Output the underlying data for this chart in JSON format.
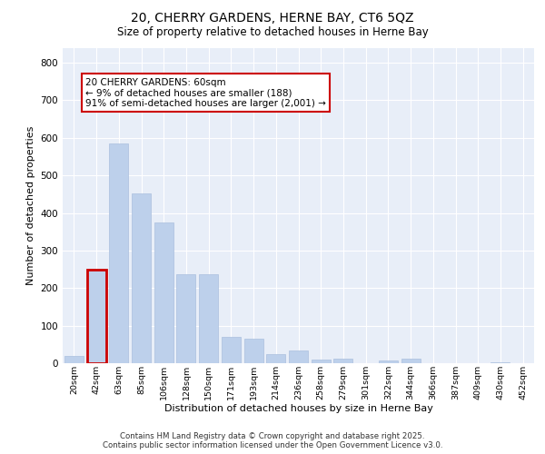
{
  "title_line1": "20, CHERRY GARDENS, HERNE BAY, CT6 5QZ",
  "title_line2": "Size of property relative to detached houses in Herne Bay",
  "xlabel": "Distribution of detached houses by size in Herne Bay",
  "ylabel": "Number of detached properties",
  "categories": [
    "20sqm",
    "42sqm",
    "63sqm",
    "85sqm",
    "106sqm",
    "128sqm",
    "150sqm",
    "171sqm",
    "193sqm",
    "214sqm",
    "236sqm",
    "258sqm",
    "279sqm",
    "301sqm",
    "322sqm",
    "344sqm",
    "366sqm",
    "387sqm",
    "409sqm",
    "430sqm",
    "452sqm"
  ],
  "values": [
    20,
    248,
    585,
    453,
    375,
    238,
    238,
    70,
    65,
    25,
    35,
    10,
    12,
    0,
    8,
    12,
    0,
    0,
    0,
    3,
    0
  ],
  "bar_color": "#bdd0eb",
  "bar_edge_color": "#aabfdd",
  "highlight_bar_index": 1,
  "highlight_edge_color": "#cc0000",
  "annotation_text": "20 CHERRY GARDENS: 60sqm\n← 9% of detached houses are smaller (188)\n91% of semi-detached houses are larger (2,001) →",
  "annotation_box_edge_color": "#cc0000",
  "ylim": [
    0,
    840
  ],
  "yticks": [
    0,
    100,
    200,
    300,
    400,
    500,
    600,
    700,
    800
  ],
  "bg_color": "#e8eef8",
  "grid_color": "#ffffff",
  "footer_line1": "Contains HM Land Registry data © Crown copyright and database right 2025.",
  "footer_line2": "Contains public sector information licensed under the Open Government Licence v3.0."
}
